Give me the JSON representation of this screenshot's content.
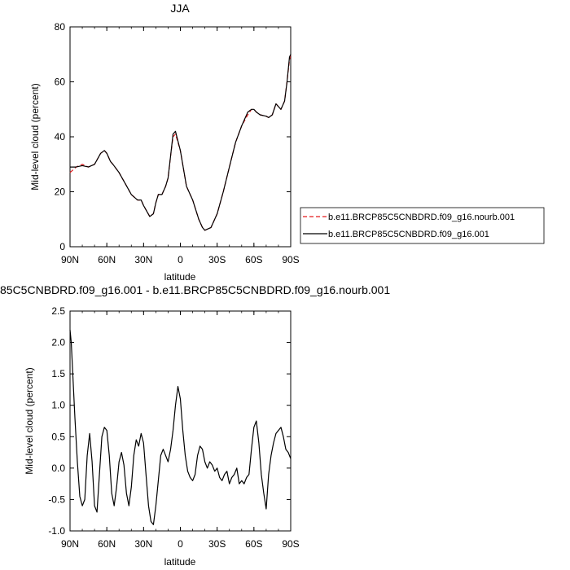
{
  "colors": {
    "nourb": "#e31a1c",
    "control": "#000000",
    "diff": "#000000"
  },
  "legend": {
    "items": [
      {
        "label": "b.e11.BRCP85C5CNBDRD.f09_g16.nourb.001",
        "color": "#e31a1c",
        "style": "dashed"
      },
      {
        "label": "b.e11.BRCP85C5CNBDRD.f09_g16.001",
        "color": "#000000",
        "style": "solid"
      }
    ]
  },
  "chart_data": [
    {
      "type": "line",
      "title": "JJA",
      "xlabel": "latitude",
      "ylabel": "Mid-level cloud (percent)",
      "xlim": [
        90,
        -90
      ],
      "ylim": [
        0,
        80
      ],
      "xticks": [
        90,
        60,
        30,
        0,
        -30,
        -60,
        -90
      ],
      "xtick_labels": [
        "90N",
        "60N",
        "30N",
        "0",
        "30S",
        "60S",
        "90S"
      ],
      "yticks": [
        0,
        20,
        40,
        60,
        80
      ],
      "ytick_labels": [
        "0",
        "20",
        "40",
        "60",
        "80"
      ],
      "legend_position": "right",
      "series": [
        {
          "name": "b.e11.BRCP85C5CNBDRD.f09_g16.nourb.001",
          "style": "dashed",
          "color": "#e31a1c",
          "x": [
            90,
            85,
            80,
            75,
            70,
            65,
            62,
            60,
            57,
            55,
            50,
            45,
            40,
            35,
            32,
            30,
            25,
            22,
            20,
            18,
            15,
            12,
            10,
            8,
            6,
            4,
            0,
            -5,
            -10,
            -15,
            -18,
            -20,
            -25,
            -30,
            -35,
            -40,
            -45,
            -50,
            -55,
            -58,
            -60,
            -62,
            -65,
            -70,
            -72,
            -75,
            -78,
            -80,
            -82,
            -85,
            -87,
            -89,
            -90
          ],
          "y": [
            27,
            29,
            30,
            29,
            30,
            34,
            35,
            34,
            31,
            30,
            27,
            23,
            19,
            17,
            17,
            15,
            11,
            12,
            16,
            19,
            19,
            22,
            25,
            33,
            40,
            41,
            35,
            22,
            17,
            10,
            7,
            6,
            7,
            12,
            20,
            29,
            38,
            44,
            48,
            50,
            50,
            49,
            48,
            47.5,
            47,
            48,
            52,
            51,
            50,
            53,
            60,
            68,
            70
          ]
        },
        {
          "name": "b.e11.BRCP85C5CNBDRD.f09_g16.001",
          "style": "solid",
          "color": "#000000",
          "x": [
            90,
            85,
            80,
            75,
            70,
            65,
            62,
            60,
            57,
            55,
            50,
            45,
            40,
            35,
            32,
            30,
            25,
            22,
            20,
            18,
            15,
            12,
            10,
            8,
            6,
            4,
            0,
            -5,
            -10,
            -15,
            -18,
            -20,
            -25,
            -30,
            -35,
            -40,
            -45,
            -50,
            -55,
            -58,
            -60,
            -62,
            -65,
            -70,
            -72,
            -75,
            -78,
            -80,
            -82,
            -85,
            -87,
            -89,
            -90
          ],
          "y": [
            29,
            29,
            29.5,
            29,
            30,
            34,
            35,
            34,
            31,
            30,
            27,
            23,
            19,
            17,
            17,
            15,
            11,
            12,
            16,
            19,
            19,
            22,
            25,
            33,
            41,
            42,
            35,
            22,
            17,
            10,
            7,
            6,
            7,
            12,
            20,
            29,
            38,
            44,
            49,
            50,
            50,
            49,
            48,
            47.5,
            47,
            48,
            52,
            51,
            50,
            53,
            60,
            69,
            70
          ]
        }
      ]
    },
    {
      "type": "line",
      "title": "85C5CNBDRD.f09_g16.001 - b.e11.BRCP85C5CNBDRD.f09_g16.nourb.001",
      "xlabel": "latitude",
      "ylabel": "Mid-level cloud (percent)",
      "xlim": [
        90,
        -90
      ],
      "ylim": [
        -1.0,
        2.5
      ],
      "xticks": [
        90,
        60,
        30,
        0,
        -30,
        -60,
        -90
      ],
      "xtick_labels": [
        "90N",
        "60N",
        "30N",
        "0",
        "30S",
        "60S",
        "90S"
      ],
      "yticks": [
        -1.0,
        -0.5,
        0.0,
        0.5,
        1.0,
        1.5,
        2.0,
        2.5
      ],
      "ytick_labels": [
        "-1.0",
        "-0.5",
        "0.0",
        "0.5",
        "1.0",
        "1.5",
        "2.0",
        "2.5"
      ],
      "series": [
        {
          "style": "solid",
          "color": "#000000",
          "x": [
            90,
            89,
            88,
            86,
            84,
            82,
            80,
            78,
            76,
            74,
            72,
            70,
            68,
            66,
            64,
            62,
            60,
            58,
            56,
            54,
            52,
            50,
            48,
            46,
            44,
            42,
            40,
            38,
            36,
            34,
            32,
            30,
            28,
            26,
            24,
            22,
            20,
            18,
            16,
            14,
            12,
            10,
            8,
            6,
            4,
            2,
            0,
            -2,
            -4,
            -6,
            -8,
            -10,
            -12,
            -14,
            -16,
            -18,
            -20,
            -22,
            -24,
            -26,
            -28,
            -30,
            -32,
            -34,
            -36,
            -38,
            -40,
            -42,
            -44,
            -46,
            -48,
            -50,
            -52,
            -54,
            -56,
            -58,
            -60,
            -62,
            -64,
            -66,
            -68,
            -70,
            -72,
            -74,
            -76,
            -78,
            -80,
            -82,
            -84,
            -86,
            -88,
            -90
          ],
          "y": [
            2.2,
            2.0,
            1.6,
            0.8,
            0.1,
            -0.45,
            -0.6,
            -0.5,
            0.2,
            0.55,
            0.1,
            -0.6,
            -0.7,
            -0.1,
            0.5,
            0.65,
            0.6,
            0.2,
            -0.4,
            -0.6,
            -0.3,
            0.1,
            0.25,
            0.05,
            -0.4,
            -0.6,
            -0.3,
            0.2,
            0.45,
            0.35,
            0.55,
            0.4,
            -0.1,
            -0.6,
            -0.85,
            -0.9,
            -0.6,
            -0.2,
            0.2,
            0.3,
            0.2,
            0.1,
            0.3,
            0.6,
            1.0,
            1.3,
            1.1,
            0.6,
            0.2,
            -0.05,
            -0.15,
            -0.2,
            -0.1,
            0.2,
            0.35,
            0.3,
            0.1,
            0.0,
            0.1,
            0.05,
            -0.05,
            0.0,
            -0.15,
            -0.2,
            -0.1,
            -0.05,
            -0.25,
            -0.15,
            -0.1,
            0.0,
            -0.25,
            -0.2,
            -0.25,
            -0.15,
            -0.1,
            0.3,
            0.65,
            0.75,
            0.4,
            -0.1,
            -0.4,
            -0.65,
            -0.1,
            0.2,
            0.4,
            0.55,
            0.6,
            0.65,
            0.5,
            0.3,
            0.25,
            0.15
          ]
        }
      ]
    }
  ]
}
